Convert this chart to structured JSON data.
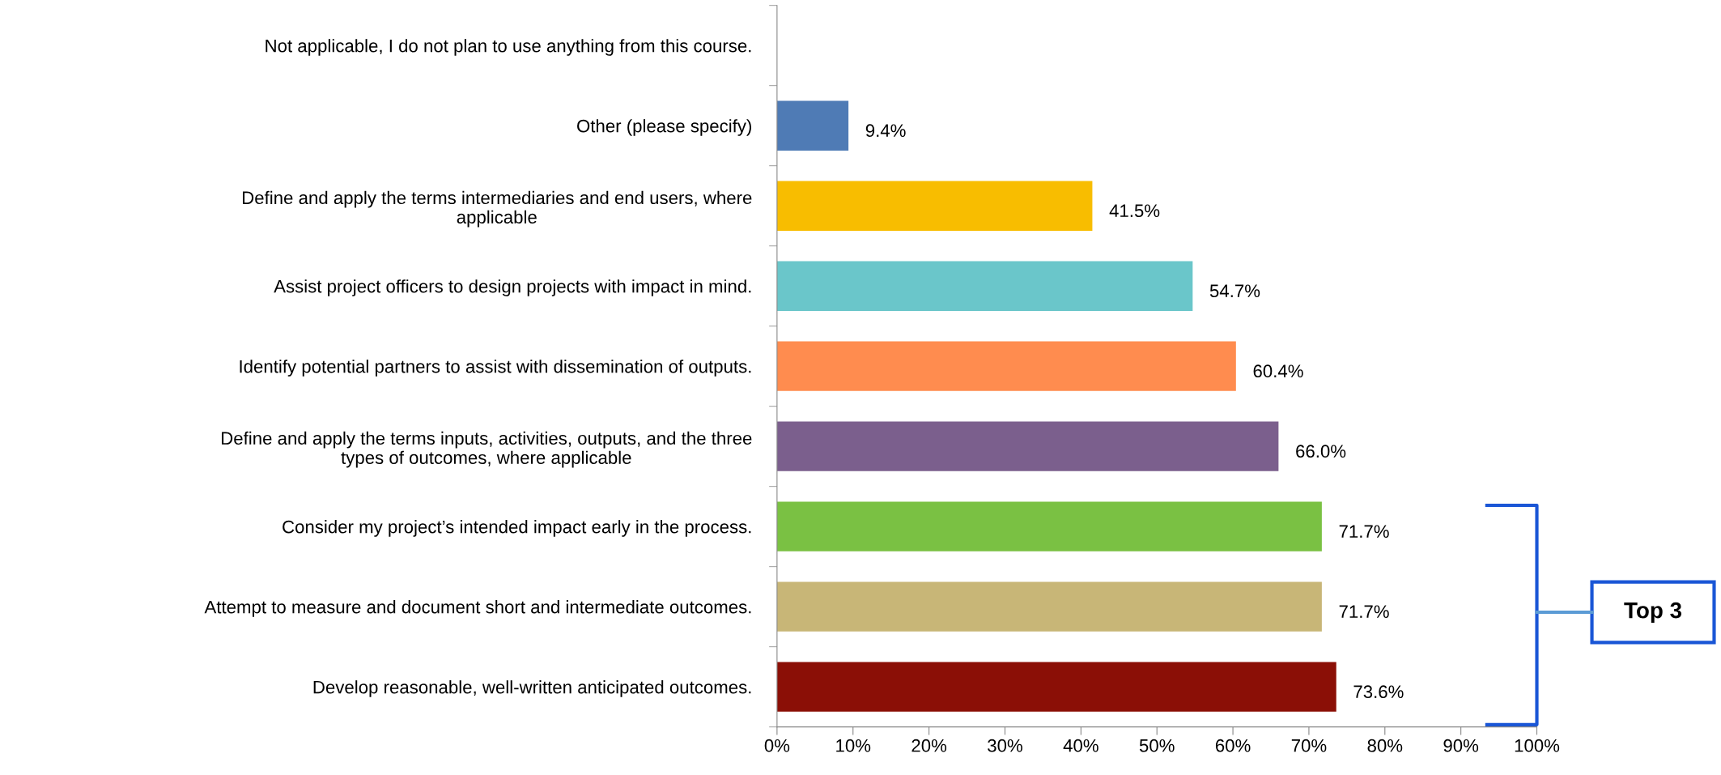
{
  "chart_data": {
    "type": "bar",
    "orientation": "horizontal",
    "categories": [
      "Not applicable, I do not plan to use anything from this course.",
      "Other (please specify)",
      "Define and apply the terms intermediaries and end users, where\napplicable",
      "Assist project officers to design projects with impact in mind.",
      "Identify potential partners to assist with dissemination of outputs.",
      "Define and apply the terms inputs, activities, outputs, and the three\ntypes of outcomes, where applicable",
      "Consider my project’s intended impact early in the process.",
      "Attempt to measure and document short and intermediate outcomes.",
      "Develop reasonable, well-written anticipated outcomes."
    ],
    "values": [
      0,
      9.4,
      41.5,
      54.7,
      60.4,
      66.0,
      71.7,
      71.7,
      73.6
    ],
    "value_labels": [
      null,
      "9.4%",
      "41.5%",
      "54.7%",
      "60.4%",
      "66.0%",
      "71.7%",
      "71.7%",
      "73.6%"
    ],
    "colors": [
      "#4f7bb5",
      "#4f7bb5",
      "#f8bd00",
      "#6ac6ca",
      "#ff8c4f",
      "#7b5f8d",
      "#7ac143",
      "#c8b677",
      "#8b0f06"
    ],
    "xlim": [
      0,
      100
    ],
    "xticks": [
      {
        "value": 0,
        "label": "0%"
      },
      {
        "value": 10,
        "label": "10%"
      },
      {
        "value": 20,
        "label": "20%"
      },
      {
        "value": 30,
        "label": "30%"
      },
      {
        "value": 40,
        "label": "40%"
      },
      {
        "value": 50,
        "label": "50%"
      },
      {
        "value": 60,
        "label": "60%"
      },
      {
        "value": 70,
        "label": "70%"
      },
      {
        "value": 80,
        "label": "80%"
      },
      {
        "value": 90,
        "label": "90%"
      },
      {
        "value": 100,
        "label": "100%"
      }
    ],
    "grid": false,
    "legend": false,
    "annotations": [
      "Top 3"
    ]
  }
}
